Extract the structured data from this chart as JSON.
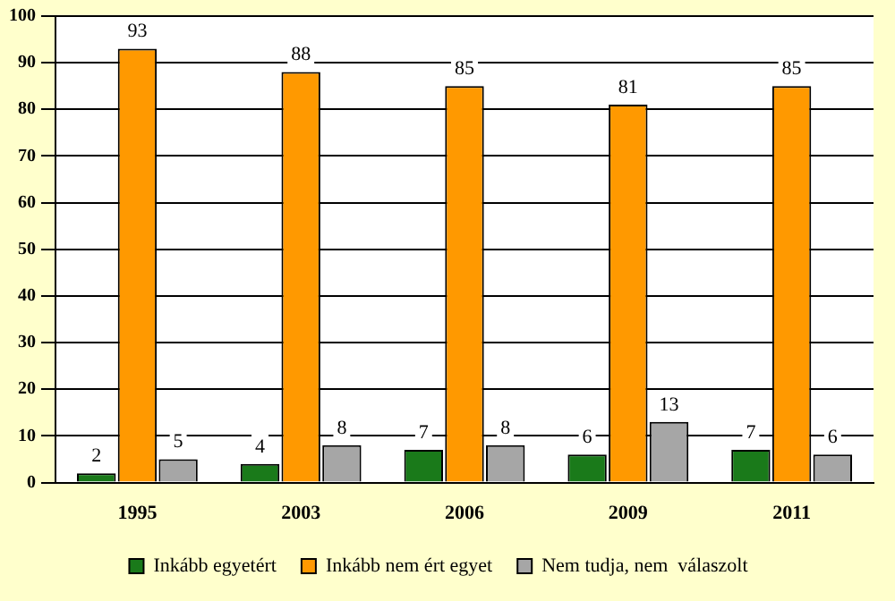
{
  "chart_data": {
    "type": "bar",
    "categories": [
      "1995",
      "2003",
      "2006",
      "2009",
      "2011"
    ],
    "series": [
      {
        "name": "Inkább egyetért",
        "color": "#1a7a1a",
        "values": [
          2,
          4,
          7,
          6,
          7
        ]
      },
      {
        "name": "Inkább nem ért egyet",
        "color": "#ff9900",
        "values": [
          93,
          88,
          85,
          81,
          85
        ]
      },
      {
        "name": "Nem tudja, nem  válaszolt",
        "color": "#a6a6a6",
        "values": [
          5,
          8,
          8,
          13,
          6
        ]
      }
    ],
    "ylim": [
      0,
      100
    ],
    "yticks": [
      0,
      10,
      20,
      30,
      40,
      50,
      60,
      70,
      80,
      90,
      100
    ],
    "grid": "y",
    "legend": "bottom",
    "data_labels": true
  }
}
